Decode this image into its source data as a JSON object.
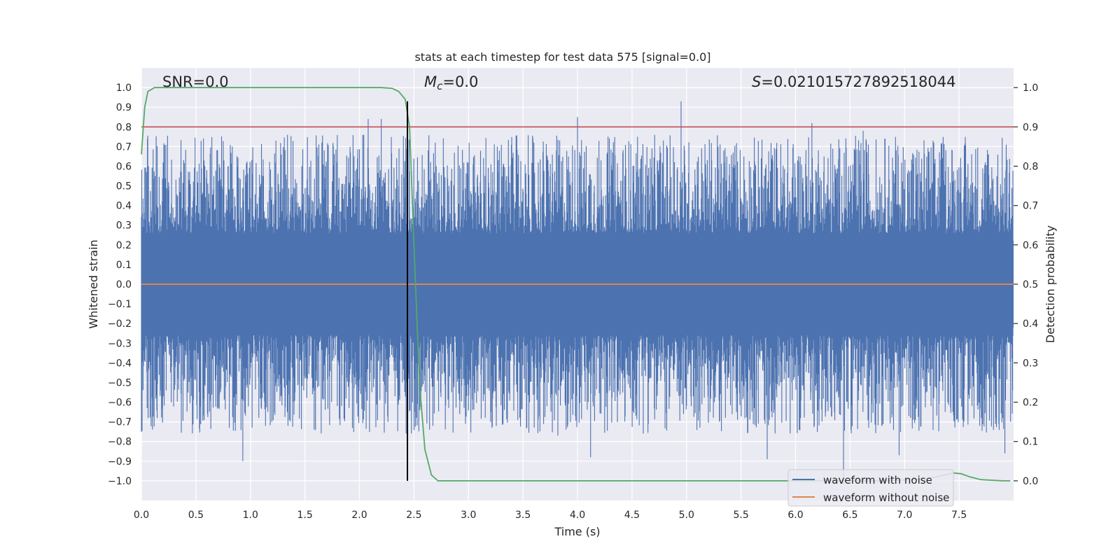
{
  "chart_data": {
    "type": "line",
    "title": "stats at each timestep for test data 575 [signal=0.0]",
    "xlabel": "Time (s)",
    "ylabel": "Whitened strain",
    "y2label": "Detection probability",
    "xlim": [
      0.0,
      8.0
    ],
    "ylim": [
      -1.1,
      1.1
    ],
    "y2lim": [
      -0.05,
      1.05
    ],
    "x_ticks": [
      "0.0",
      "0.5",
      "1.0",
      "1.5",
      "2.0",
      "2.5",
      "3.0",
      "3.5",
      "4.0",
      "4.5",
      "5.0",
      "5.5",
      "6.0",
      "6.5",
      "7.0",
      "7.5"
    ],
    "y_ticks": [
      "1.0",
      "0.9",
      "0.8",
      "0.7",
      "0.6",
      "0.5",
      "0.4",
      "0.3",
      "0.2",
      "0.1",
      "0.0",
      "−0.1",
      "−0.2",
      "−0.3",
      "−0.4",
      "−0.5",
      "−0.6",
      "−0.7",
      "−0.8",
      "−0.9",
      "−1.0"
    ],
    "y2_ticks": [
      "1.0",
      "0.9",
      "0.8",
      "0.7",
      "0.6",
      "0.5",
      "0.4",
      "0.3",
      "0.2",
      "0.1",
      "0.0"
    ],
    "annotations": {
      "snr": "SNR=0.0",
      "mc_symbol": "M",
      "mc_sub": "c",
      "mc_value": "=0.0",
      "s_symbol": "S",
      "s_value": "=0.021015727892518044"
    },
    "threshold": {
      "axis": "y2",
      "value": 0.9,
      "color": "#c44e52"
    },
    "vline": {
      "x": 2.44,
      "ymin": -1.0,
      "ymax": 0.93,
      "color": "#000000"
    },
    "series": [
      {
        "name": "waveform with noise",
        "color": "#4c72b0",
        "axis": "y",
        "kind": "noise",
        "core_band": [
          -0.22,
          0.22
        ],
        "peaks": [
          {
            "x": 0.93,
            "y": -0.9
          },
          {
            "x": 1.34,
            "y": 0.76
          },
          {
            "x": 2.08,
            "y": 0.84
          },
          {
            "x": 2.2,
            "y": 0.84
          },
          {
            "x": 3.82,
            "y": -0.77
          },
          {
            "x": 4.0,
            "y": 0.85
          },
          {
            "x": 4.12,
            "y": -0.88
          },
          {
            "x": 4.95,
            "y": 0.93
          },
          {
            "x": 5.74,
            "y": -0.89
          },
          {
            "x": 6.15,
            "y": 0.82
          },
          {
            "x": 6.44,
            "y": -1.02
          },
          {
            "x": 6.62,
            "y": 0.78
          },
          {
            "x": 6.95,
            "y": -0.87
          },
          {
            "x": 7.92,
            "y": -0.86
          }
        ]
      },
      {
        "name": "waveform without noise",
        "color": "#dd8452",
        "axis": "y",
        "x": [
          0.0,
          8.0
        ],
        "y": [
          0.0,
          0.0
        ]
      },
      {
        "name": "detection probability",
        "color": "#55a868",
        "axis": "y2",
        "x": [
          0.0,
          0.03,
          0.06,
          0.12,
          0.3,
          1.0,
          2.0,
          2.2,
          2.3,
          2.36,
          2.42,
          2.46,
          2.5,
          2.55,
          2.6,
          2.66,
          2.72,
          2.8,
          3.0,
          4.0,
          5.0,
          6.0,
          6.8,
          7.2,
          7.45,
          7.52,
          7.6,
          7.7,
          7.9,
          7.97
        ],
        "y": [
          0.83,
          0.95,
          0.99,
          1.0,
          1.0,
          1.0,
          1.0,
          1.0,
          0.998,
          0.99,
          0.97,
          0.9,
          0.6,
          0.25,
          0.08,
          0.015,
          0.0,
          0.0,
          0.0,
          0.0,
          0.0,
          0.0,
          0.0,
          0.005,
          0.02,
          0.018,
          0.01,
          0.003,
          0.0,
          0.0
        ]
      }
    ],
    "legend": {
      "position": "lower-right",
      "items": [
        "waveform with noise",
        "waveform without noise"
      ]
    }
  }
}
